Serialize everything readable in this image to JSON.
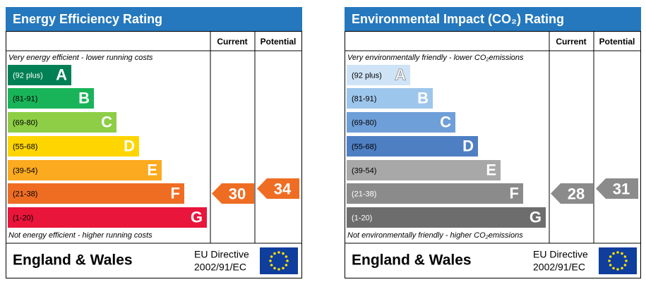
{
  "panels": [
    {
      "title": "Energy Efficiency Rating",
      "columns": [
        "Current",
        "Potential"
      ],
      "top_note": "Very energy efficient - lower running costs",
      "bottom_note": "Not energy efficient - higher running costs",
      "bands": [
        {
          "range": "(92 plus)",
          "letter": "A",
          "color": "#008054",
          "label_color": "#fff"
        },
        {
          "range": "(81-91)",
          "letter": "B",
          "color": "#19b459",
          "label_color": "#000"
        },
        {
          "range": "(69-80)",
          "letter": "C",
          "color": "#8dce46",
          "label_color": "#000"
        },
        {
          "range": "(55-68)",
          "letter": "D",
          "color": "#ffd500",
          "label_color": "#000"
        },
        {
          "range": "(39-54)",
          "letter": "E",
          "color": "#fcaa1f",
          "label_color": "#000"
        },
        {
          "range": "(21-38)",
          "letter": "F",
          "color": "#ef6d23",
          "label_color": "#000"
        },
        {
          "range": "(1-20)",
          "letter": "G",
          "color": "#e9153b",
          "label_color": "#000"
        }
      ],
      "current": 30,
      "potential": 34,
      "footer": {
        "region": "England & Wales",
        "directive": [
          "EU Directive",
          "2002/91/EC"
        ]
      }
    },
    {
      "title": "Environmental Impact (CO₂) Rating",
      "columns": [
        "Current",
        "Potential"
      ],
      "top_note": "Very environmentally friendly - lower CO₂emissions",
      "bottom_note": "Not environmentally friendly - higher CO₂emissions",
      "bands": [
        {
          "range": "(92 plus)",
          "letter": "A",
          "color": "#cfe3f6",
          "label_color": "#000"
        },
        {
          "range": "(81-91)",
          "letter": "B",
          "color": "#9dc6ec",
          "label_color": "#000"
        },
        {
          "range": "(69-80)",
          "letter": "C",
          "color": "#6f9fd8",
          "label_color": "#000"
        },
        {
          "range": "(55-68)",
          "letter": "D",
          "color": "#4f7fc3",
          "label_color": "#000"
        },
        {
          "range": "(39-54)",
          "letter": "E",
          "color": "#a8a8a8",
          "label_color": "#000"
        },
        {
          "range": "(21-38)",
          "letter": "F",
          "color": "#8b8b8b",
          "label_color": "#fff"
        },
        {
          "range": "(1-20)",
          "letter": "G",
          "color": "#6d6d6d",
          "label_color": "#fff"
        }
      ],
      "current": 28,
      "potential": 31,
      "footer": {
        "region": "England & Wales",
        "directive": [
          "EU Directive",
          "2002/91/EC"
        ]
      }
    }
  ]
}
